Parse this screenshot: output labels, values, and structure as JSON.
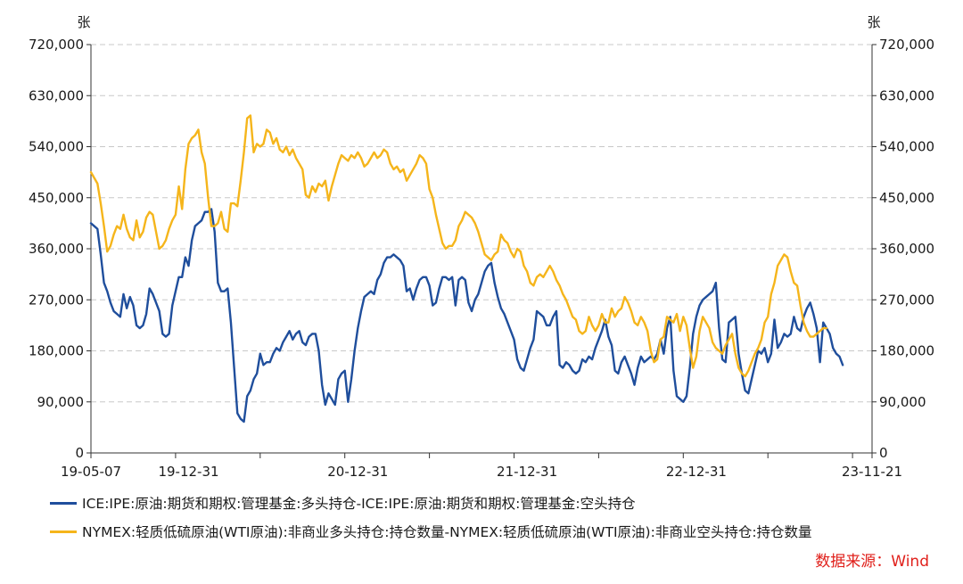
{
  "chart_data": {
    "type": "line",
    "unit_left": "张",
    "unit_right": "张",
    "x_tick_labels": [
      "19-05-07",
      "19-12-31",
      "20-12-31",
      "21-12-31",
      "22-12-31",
      "23-11-21"
    ],
    "x_tick_index": [
      0,
      30,
      82,
      134,
      186,
      240
    ],
    "x_range": [
      0,
      240
    ],
    "y_ticks": [
      0,
      90000,
      180000,
      270000,
      360000,
      450000,
      540000,
      630000,
      720000
    ],
    "y_tick_labels": [
      "0",
      "90,000",
      "180,000",
      "270,000",
      "360,000",
      "450,000",
      "540,000",
      "630,000",
      "720,000"
    ],
    "ylim": [
      0,
      720000
    ],
    "grid": "horizontal dashed",
    "legend_position": "bottom",
    "series": [
      {
        "name": "ICE:IPE:原油:期货和期权:管理基金:多头持仓-ICE:IPE:原油:期货和期权:管理基金:空头持仓",
        "color": "#1f4e9c",
        "values": [
          405000,
          400000,
          395000,
          350000,
          300000,
          285000,
          265000,
          250000,
          245000,
          240000,
          280000,
          255000,
          275000,
          260000,
          225000,
          220000,
          225000,
          245000,
          290000,
          280000,
          265000,
          250000,
          210000,
          205000,
          210000,
          260000,
          285000,
          310000,
          310000,
          345000,
          330000,
          375000,
          400000,
          405000,
          410000,
          425000,
          425000,
          430000,
          390000,
          300000,
          285000,
          285000,
          290000,
          230000,
          150000,
          70000,
          60000,
          55000,
          100000,
          110000,
          130000,
          140000,
          175000,
          155000,
          160000,
          160000,
          175000,
          185000,
          180000,
          195000,
          205000,
          215000,
          200000,
          210000,
          215000,
          195000,
          190000,
          205000,
          210000,
          210000,
          180000,
          120000,
          85000,
          105000,
          95000,
          85000,
          130000,
          140000,
          145000,
          90000,
          130000,
          180000,
          220000,
          250000,
          275000,
          280000,
          285000,
          280000,
          305000,
          315000,
          335000,
          345000,
          345000,
          350000,
          345000,
          340000,
          330000,
          285000,
          290000,
          270000,
          290000,
          305000,
          310000,
          310000,
          295000,
          260000,
          265000,
          290000,
          310000,
          310000,
          305000,
          310000,
          260000,
          305000,
          310000,
          305000,
          265000,
          250000,
          270000,
          280000,
          300000,
          320000,
          330000,
          335000,
          300000,
          275000,
          255000,
          245000,
          230000,
          215000,
          200000,
          165000,
          150000,
          145000,
          165000,
          185000,
          200000,
          250000,
          245000,
          240000,
          225000,
          225000,
          240000,
          250000,
          155000,
          150000,
          160000,
          155000,
          145000,
          140000,
          145000,
          165000,
          160000,
          170000,
          165000,
          185000,
          200000,
          215000,
          235000,
          205000,
          190000,
          145000,
          140000,
          160000,
          170000,
          155000,
          140000,
          120000,
          150000,
          170000,
          160000,
          165000,
          170000,
          165000,
          175000,
          200000,
          175000,
          220000,
          240000,
          145000,
          100000,
          95000,
          90000,
          100000,
          150000,
          210000,
          240000,
          260000,
          270000,
          275000,
          280000,
          285000,
          300000,
          220000,
          165000,
          160000,
          230000,
          235000,
          240000,
          175000,
          140000,
          110000,
          105000,
          130000,
          155000,
          180000,
          175000,
          185000,
          160000,
          175000,
          235000,
          185000,
          195000,
          210000,
          205000,
          210000,
          240000,
          220000,
          215000,
          240000,
          255000,
          265000,
          245000,
          220000,
          160000,
          230000,
          220000,
          210000,
          185000,
          175000,
          170000,
          155000
        ]
      },
      {
        "name": "NYMEX:轻质低硫原油(WTI原油):非商业多头持仓:持仓数量-NYMEX:轻质低硫原油(WTI原油):非商业空头持仓:持仓数量",
        "color": "#f5b51b",
        "values": [
          495000,
          485000,
          475000,
          440000,
          400000,
          355000,
          365000,
          385000,
          400000,
          395000,
          420000,
          395000,
          380000,
          375000,
          410000,
          380000,
          390000,
          415000,
          425000,
          420000,
          390000,
          360000,
          365000,
          375000,
          395000,
          410000,
          420000,
          470000,
          430000,
          500000,
          545000,
          555000,
          560000,
          570000,
          530000,
          510000,
          450000,
          400000,
          400000,
          405000,
          425000,
          395000,
          390000,
          440000,
          440000,
          435000,
          480000,
          530000,
          590000,
          595000,
          530000,
          545000,
          540000,
          545000,
          570000,
          565000,
          545000,
          555000,
          535000,
          530000,
          540000,
          525000,
          535000,
          520000,
          510000,
          500000,
          455000,
          450000,
          470000,
          460000,
          475000,
          470000,
          480000,
          445000,
          470000,
          490000,
          510000,
          525000,
          520000,
          515000,
          525000,
          520000,
          530000,
          520000,
          505000,
          510000,
          520000,
          530000,
          520000,
          525000,
          535000,
          530000,
          510000,
          500000,
          505000,
          495000,
          500000,
          480000,
          490000,
          500000,
          510000,
          525000,
          520000,
          510000,
          465000,
          450000,
          420000,
          395000,
          370000,
          360000,
          365000,
          365000,
          375000,
          400000,
          410000,
          425000,
          420000,
          415000,
          405000,
          390000,
          370000,
          350000,
          345000,
          340000,
          350000,
          355000,
          385000,
          375000,
          370000,
          355000,
          345000,
          360000,
          355000,
          330000,
          320000,
          300000,
          295000,
          310000,
          315000,
          310000,
          320000,
          330000,
          320000,
          305000,
          295000,
          280000,
          270000,
          255000,
          240000,
          235000,
          215000,
          210000,
          215000,
          240000,
          225000,
          215000,
          225000,
          245000,
          230000,
          230000,
          255000,
          240000,
          250000,
          255000,
          275000,
          265000,
          250000,
          230000,
          225000,
          240000,
          230000,
          215000,
          180000,
          160000,
          165000,
          200000,
          205000,
          240000,
          235000,
          230000,
          245000,
          215000,
          240000,
          225000,
          185000,
          150000,
          170000,
          215000,
          240000,
          230000,
          220000,
          195000,
          185000,
          180000,
          175000,
          190000,
          200000,
          210000,
          175000,
          150000,
          140000,
          135000,
          145000,
          160000,
          175000,
          185000,
          200000,
          230000,
          240000,
          280000,
          300000,
          330000,
          340000,
          350000,
          345000,
          320000,
          300000,
          295000,
          260000,
          230000,
          215000,
          205000,
          205000,
          210000,
          215000,
          220000,
          220000
        ]
      }
    ]
  },
  "source_text": "数据来源：Wind"
}
